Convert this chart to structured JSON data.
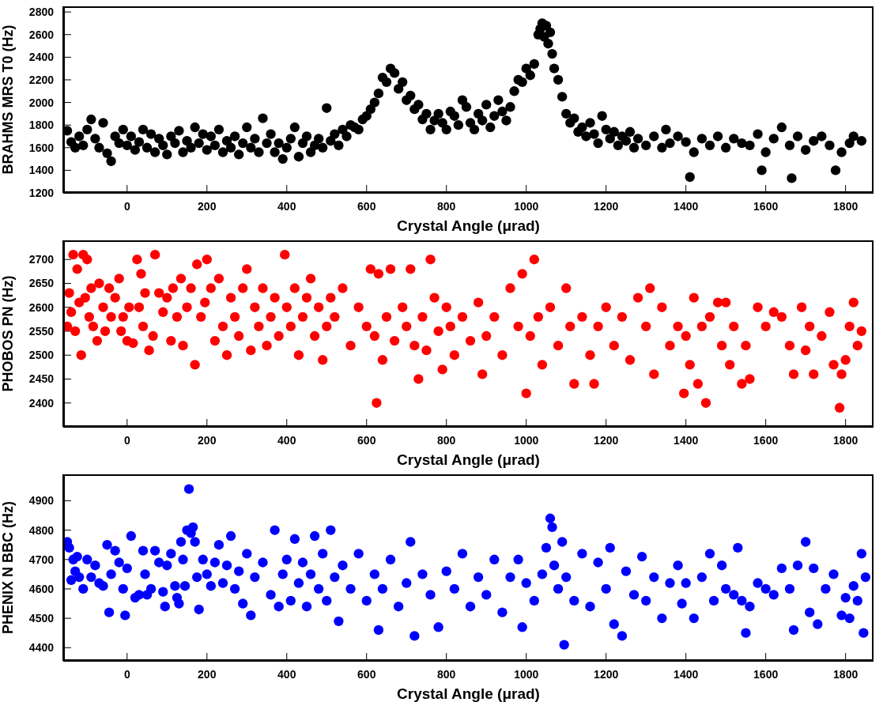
{
  "chart_data": [
    {
      "type": "scatter",
      "xlabel": "Crystal Angle (μrad)",
      "ylabel": "BRAHMS MRS T0 (Hz)",
      "marker": "circle",
      "color": "#000000",
      "xlim": [
        -160,
        1870
      ],
      "xticks": [
        0,
        200,
        400,
        600,
        800,
        1000,
        1200,
        1400,
        1600,
        1800
      ],
      "ylim": [
        1200,
        2850
      ],
      "yticks": [
        1200,
        1400,
        1600,
        1800,
        2000,
        2200,
        2400,
        2600,
        2800
      ],
      "x": [
        -150,
        -140,
        -130,
        -120,
        -110,
        -100,
        -90,
        -80,
        -70,
        -60,
        -50,
        -40,
        -30,
        -20,
        -10,
        0,
        10,
        20,
        30,
        40,
        50,
        60,
        70,
        80,
        90,
        100,
        110,
        120,
        130,
        140,
        150,
        160,
        170,
        180,
        190,
        200,
        210,
        220,
        230,
        240,
        250,
        260,
        270,
        280,
        290,
        300,
        310,
        320,
        330,
        340,
        350,
        360,
        370,
        380,
        390,
        400,
        410,
        420,
        430,
        440,
        450,
        460,
        470,
        480,
        490,
        500,
        510,
        520,
        530,
        540,
        550,
        560,
        570,
        580,
        590,
        600,
        610,
        620,
        630,
        640,
        650,
        660,
        670,
        680,
        690,
        700,
        710,
        720,
        730,
        740,
        750,
        760,
        770,
        780,
        790,
        800,
        810,
        820,
        830,
        840,
        850,
        860,
        870,
        880,
        890,
        900,
        910,
        920,
        930,
        940,
        950,
        960,
        970,
        980,
        990,
        1000,
        1010,
        1020,
        1030,
        1035,
        1040,
        1045,
        1050,
        1055,
        1060,
        1065,
        1070,
        1080,
        1090,
        1100,
        1110,
        1120,
        1130,
        1140,
        1150,
        1160,
        1170,
        1180,
        1190,
        1200,
        1210,
        1220,
        1230,
        1240,
        1250,
        1260,
        1270,
        1280,
        1300,
        1320,
        1340,
        1350,
        1360,
        1380,
        1400,
        1410,
        1420,
        1440,
        1460,
        1480,
        1500,
        1520,
        1540,
        1560,
        1580,
        1590,
        1600,
        1620,
        1640,
        1660,
        1665,
        1680,
        1700,
        1720,
        1740,
        1760,
        1775,
        1790,
        1810,
        1820,
        1840
      ],
      "values": [
        1750,
        1650,
        1600,
        1700,
        1620,
        1760,
        1850,
        1680,
        1600,
        1820,
        1550,
        1480,
        1700,
        1640,
        1760,
        1620,
        1700,
        1580,
        1650,
        1760,
        1600,
        1720,
        1560,
        1680,
        1620,
        1540,
        1700,
        1640,
        1750,
        1560,
        1660,
        1600,
        1780,
        1640,
        1720,
        1580,
        1700,
        1620,
        1760,
        1560,
        1660,
        1600,
        1700,
        1540,
        1640,
        1780,
        1600,
        1680,
        1560,
        1860,
        1640,
        1720,
        1560,
        1640,
        1500,
        1600,
        1680,
        1780,
        1520,
        1640,
        1700,
        1560,
        1620,
        1680,
        1600,
        1950,
        1660,
        1720,
        1620,
        1760,
        1700,
        1800,
        1780,
        1760,
        1850,
        1880,
        1940,
        2000,
        2080,
        2220,
        2180,
        2300,
        2260,
        2120,
        2180,
        2020,
        2060,
        1940,
        1980,
        1850,
        1900,
        1760,
        1840,
        1900,
        1820,
        1760,
        1920,
        1880,
        1800,
        2020,
        1960,
        1820,
        1760,
        1900,
        1840,
        1980,
        1780,
        1880,
        2020,
        1920,
        1840,
        1960,
        2100,
        2200,
        2180,
        2300,
        2240,
        2340,
        2600,
        2650,
        2700,
        2580,
        2680,
        2520,
        2620,
        2430,
        2300,
        2200,
        2050,
        1900,
        1820,
        1860,
        1740,
        1780,
        1700,
        1820,
        1720,
        1640,
        1880,
        1760,
        1680,
        1740,
        1620,
        1700,
        1660,
        1740,
        1600,
        1680,
        1620,
        1700,
        1600,
        1760,
        1640,
        1700,
        1650,
        1340,
        1560,
        1680,
        1620,
        1700,
        1600,
        1680,
        1640,
        1620,
        1720,
        1400,
        1560,
        1680,
        1780,
        1620,
        1330,
        1700,
        1580,
        1660,
        1700,
        1620,
        1400,
        1560,
        1640,
        1700,
        1660
      ]
    },
    {
      "type": "scatter",
      "xlabel": "Crystal Angle (μrad)",
      "ylabel": "PHOBOS PN (Hz)",
      "marker": "circle",
      "color": "#ff0000",
      "xlim": [
        -160,
        1870
      ],
      "xticks": [
        0,
        200,
        400,
        600,
        800,
        1000,
        1200,
        1400,
        1600,
        1800
      ],
      "ylim": [
        2350,
        2740
      ],
      "yticks": [
        2400,
        2450,
        2500,
        2550,
        2600,
        2650,
        2700
      ],
      "x": [
        -150,
        -145,
        -140,
        -135,
        -130,
        -125,
        -120,
        -115,
        -110,
        -105,
        -100,
        -95,
        -90,
        -85,
        -75,
        -70,
        -60,
        -55,
        -45,
        -40,
        -30,
        -20,
        -15,
        -10,
        0,
        5,
        15,
        25,
        30,
        35,
        40,
        45,
        55,
        65,
        70,
        80,
        90,
        100,
        110,
        115,
        125,
        135,
        140,
        150,
        160,
        170,
        175,
        185,
        195,
        200,
        210,
        220,
        230,
        240,
        250,
        260,
        270,
        280,
        290,
        300,
        310,
        320,
        330,
        340,
        350,
        360,
        370,
        380,
        395,
        400,
        410,
        420,
        430,
        440,
        450,
        460,
        470,
        480,
        490,
        500,
        510,
        520,
        540,
        560,
        580,
        600,
        610,
        620,
        625,
        630,
        640,
        650,
        660,
        670,
        690,
        700,
        710,
        720,
        730,
        740,
        750,
        760,
        770,
        780,
        790,
        800,
        810,
        820,
        840,
        860,
        880,
        890,
        900,
        920,
        940,
        960,
        980,
        990,
        1000,
        1010,
        1020,
        1030,
        1040,
        1060,
        1080,
        1100,
        1110,
        1120,
        1140,
        1160,
        1170,
        1180,
        1200,
        1220,
        1240,
        1260,
        1280,
        1300,
        1310,
        1320,
        1340,
        1360,
        1380,
        1395,
        1400,
        1410,
        1420,
        1430,
        1440,
        1450,
        1460,
        1480,
        1490,
        1500,
        1510,
        1520,
        1540,
        1550,
        1560,
        1580,
        1600,
        1620,
        1640,
        1660,
        1670,
        1690,
        1700,
        1710,
        1720,
        1740,
        1760,
        1770,
        1785,
        1790,
        1800,
        1810,
        1820,
        1830,
        1840
      ],
      "values": [
        2560,
        2630,
        2590,
        2710,
        2550,
        2680,
        2610,
        2500,
        2710,
        2620,
        2700,
        2580,
        2640,
        2560,
        2530,
        2650,
        2600,
        2550,
        2640,
        2580,
        2620,
        2660,
        2550,
        2580,
        2530,
        2600,
        2525,
        2700,
        2600,
        2670,
        2560,
        2630,
        2510,
        2540,
        2710,
        2630,
        2590,
        2620,
        2530,
        2640,
        2580,
        2660,
        2520,
        2600,
        2640,
        2480,
        2690,
        2580,
        2610,
        2700,
        2640,
        2530,
        2660,
        2560,
        2500,
        2620,
        2580,
        2540,
        2640,
        2680,
        2510,
        2600,
        2560,
        2640,
        2520,
        2580,
        2620,
        2540,
        2710,
        2600,
        2560,
        2640,
        2500,
        2580,
        2620,
        2660,
        2540,
        2600,
        2490,
        2560,
        2620,
        2580,
        2640,
        2520,
        2600,
        2560,
        2680,
        2540,
        2400,
        2670,
        2490,
        2580,
        2680,
        2530,
        2600,
        2560,
        2680,
        2520,
        2450,
        2580,
        2510,
        2700,
        2620,
        2550,
        2470,
        2600,
        2560,
        2500,
        2580,
        2530,
        2610,
        2460,
        2540,
        2580,
        2500,
        2640,
        2560,
        2670,
        2420,
        2540,
        2700,
        2580,
        2480,
        2600,
        2520,
        2640,
        2560,
        2440,
        2580,
        2500,
        2440,
        2560,
        2600,
        2520,
        2580,
        2490,
        2620,
        2560,
        2640,
        2460,
        2600,
        2520,
        2560,
        2420,
        2540,
        2480,
        2620,
        2440,
        2560,
        2400,
        2580,
        2610,
        2520,
        2610,
        2480,
        2560,
        2440,
        2520,
        2450,
        2600,
        2560,
        2590,
        2580,
        2520,
        2460,
        2600,
        2510,
        2560,
        2460,
        2540,
        2590,
        2480,
        2390,
        2460,
        2490,
        2560,
        2610,
        2520,
        2550
      ]
    },
    {
      "type": "scatter",
      "xlabel": "Crystal Angle (μrad)",
      "ylabel": "PHENIX N BBC (Hz)",
      "marker": "circle",
      "color": "#0000ff",
      "xlim": [
        -160,
        1870
      ],
      "xticks": [
        0,
        200,
        400,
        600,
        800,
        1000,
        1200,
        1400,
        1600,
        1800
      ],
      "ylim": [
        4355,
        4990
      ],
      "yticks": [
        4400,
        4500,
        4600,
        4700,
        4800,
        4900
      ],
      "x": [
        -150,
        -145,
        -140,
        -135,
        -130,
        -125,
        -120,
        -110,
        -100,
        -90,
        -80,
        -70,
        -60,
        -50,
        -45,
        -40,
        -30,
        -20,
        -10,
        -5,
        0,
        10,
        20,
        30,
        40,
        45,
        50,
        60,
        70,
        80,
        90,
        95,
        100,
        110,
        120,
        125,
        130,
        135,
        140,
        145,
        150,
        155,
        160,
        165,
        170,
        175,
        180,
        190,
        200,
        210,
        220,
        230,
        240,
        250,
        260,
        270,
        280,
        290,
        300,
        310,
        320,
        340,
        360,
        370,
        380,
        390,
        400,
        410,
        420,
        430,
        440,
        450,
        460,
        470,
        480,
        490,
        500,
        510,
        520,
        530,
        540,
        560,
        580,
        600,
        620,
        630,
        640,
        660,
        680,
        700,
        710,
        720,
        740,
        760,
        780,
        800,
        820,
        840,
        860,
        880,
        900,
        920,
        940,
        960,
        980,
        990,
        1000,
        1020,
        1040,
        1050,
        1060,
        1065,
        1070,
        1080,
        1090,
        1095,
        1100,
        1120,
        1140,
        1160,
        1180,
        1200,
        1210,
        1220,
        1240,
        1250,
        1270,
        1290,
        1300,
        1320,
        1340,
        1360,
        1380,
        1390,
        1400,
        1420,
        1440,
        1460,
        1470,
        1490,
        1500,
        1520,
        1530,
        1540,
        1550,
        1560,
        1580,
        1600,
        1620,
        1640,
        1660,
        1670,
        1680,
        1700,
        1710,
        1720,
        1730,
        1750,
        1770,
        1790,
        1800,
        1810,
        1820,
        1830,
        1840,
        1845,
        1850
      ],
      "values": [
        4760,
        4740,
        4630,
        4700,
        4660,
        4710,
        4640,
        4600,
        4700,
        4640,
        4680,
        4620,
        4610,
        4750,
        4520,
        4650,
        4730,
        4690,
        4600,
        4510,
        4670,
        4780,
        4570,
        4580,
        4730,
        4650,
        4580,
        4600,
        4730,
        4690,
        4590,
        4540,
        4680,
        4720,
        4610,
        4570,
        4550,
        4760,
        4700,
        4610,
        4800,
        4940,
        4790,
        4810,
        4760,
        4640,
        4530,
        4700,
        4650,
        4610,
        4690,
        4750,
        4620,
        4680,
        4780,
        4600,
        4660,
        4550,
        4720,
        4510,
        4640,
        4690,
        4580,
        4800,
        4540,
        4650,
        4700,
        4560,
        4770,
        4620,
        4690,
        4540,
        4650,
        4780,
        4600,
        4720,
        4560,
        4800,
        4640,
        4490,
        4680,
        4600,
        4720,
        4560,
        4650,
        4460,
        4600,
        4700,
        4540,
        4620,
        4760,
        4440,
        4650,
        4580,
        4470,
        4660,
        4600,
        4720,
        4540,
        4640,
        4580,
        4700,
        4520,
        4640,
        4700,
        4470,
        4620,
        4560,
        4650,
        4740,
        4840,
        4810,
        4680,
        4600,
        4760,
        4410,
        4640,
        4560,
        4720,
        4540,
        4690,
        4600,
        4740,
        4480,
        4440,
        4660,
        4580,
        4710,
        4560,
        4640,
        4500,
        4620,
        4680,
        4550,
        4620,
        4500,
        4640,
        4720,
        4560,
        4680,
        4600,
        4580,
        4740,
        4560,
        4450,
        4540,
        4620,
        4600,
        4580,
        4670,
        4600,
        4460,
        4680,
        4760,
        4520,
        4670,
        4480,
        4600,
        4650,
        4510,
        4570,
        4500,
        4610,
        4560,
        4720,
        4450,
        4640
      ]
    }
  ]
}
